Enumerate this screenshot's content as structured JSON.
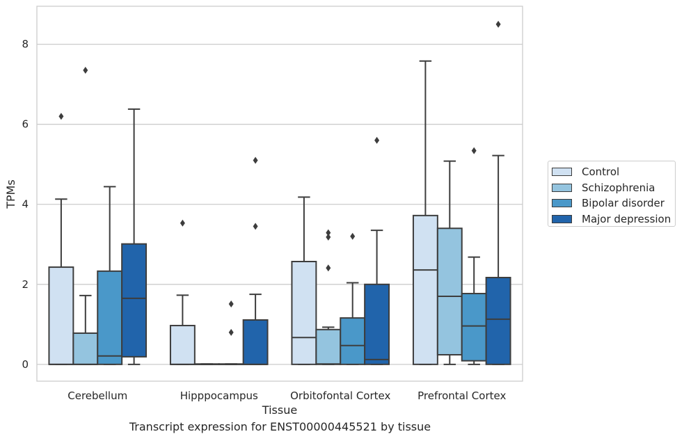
{
  "caption": "Transcript expression for ENST00000445521 by tissue",
  "chart_data": {
    "type": "box",
    "title": "",
    "xlabel": "Tissue",
    "ylabel": "TPMs",
    "ylim": [
      -0.42,
      8.95
    ],
    "yticks": [
      0,
      2,
      4,
      6,
      8
    ],
    "grid": "horizontal",
    "legend_position": "right",
    "categories": [
      "Cerebellum",
      "Hipppocampus",
      "Orbitofontal Cortex",
      "Prefrontal Cortex"
    ],
    "series": [
      {
        "name": "Control",
        "color": "#d0e1f2",
        "boxes": [
          {
            "low": 0,
            "q1": 0,
            "median": 0,
            "q3": 2.43,
            "high": 4.13,
            "outliers": [
              6.2
            ]
          },
          {
            "low": 0,
            "q1": 0,
            "median": 0,
            "q3": 0.97,
            "high": 1.73,
            "outliers": [
              3.53
            ]
          },
          {
            "low": 0,
            "q1": 0,
            "median": 0.67,
            "q3": 2.57,
            "high": 4.18,
            "outliers": []
          },
          {
            "low": 0,
            "q1": 0,
            "median": 2.36,
            "q3": 3.72,
            "high": 7.58,
            "outliers": []
          }
        ]
      },
      {
        "name": "Schizophrenia",
        "color": "#94c4df",
        "boxes": [
          {
            "low": 0,
            "q1": 0,
            "median": 0,
            "q3": 0.78,
            "high": 1.72,
            "outliers": [
              7.35
            ]
          },
          {
            "low": 0,
            "q1": 0,
            "median": 0,
            "q3": 0.01,
            "high": 0.01,
            "outliers": []
          },
          {
            "low": 0,
            "q1": 0,
            "median": 0.01,
            "q3": 0.87,
            "high": 0.93,
            "outliers": [
              2.41,
              3.18,
              3.29
            ]
          },
          {
            "low": 0,
            "q1": 0.24,
            "median": 1.7,
            "q3": 3.4,
            "high": 5.08,
            "outliers": []
          }
        ]
      },
      {
        "name": "Bipolar disorder",
        "color": "#4a98c9",
        "boxes": [
          {
            "low": 0,
            "q1": 0,
            "median": 0.21,
            "q3": 2.33,
            "high": 4.44,
            "outliers": []
          },
          {
            "low": 0,
            "q1": 0,
            "median": 0,
            "q3": 0.01,
            "high": 0.01,
            "outliers": [
              0.8,
              1.51
            ]
          },
          {
            "low": 0,
            "q1": 0,
            "median": 0.47,
            "q3": 1.16,
            "high": 2.04,
            "outliers": [
              3.2
            ]
          },
          {
            "low": 0,
            "q1": 0.09,
            "median": 0.96,
            "q3": 1.77,
            "high": 2.68,
            "outliers": [
              5.34
            ]
          }
        ]
      },
      {
        "name": "Major depression",
        "color": "#2164ab",
        "boxes": [
          {
            "low": 0,
            "q1": 0.19,
            "median": 1.65,
            "q3": 3.01,
            "high": 6.38,
            "outliers": []
          },
          {
            "low": 0,
            "q1": 0,
            "median": 0,
            "q3": 1.11,
            "high": 1.75,
            "outliers": [
              3.45,
              5.1
            ]
          },
          {
            "low": 0,
            "q1": 0,
            "median": 0.12,
            "q3": 2.0,
            "high": 3.35,
            "outliers": [
              5.6
            ]
          },
          {
            "low": 0,
            "q1": 0,
            "median": 1.13,
            "q3": 2.17,
            "high": 5.22,
            "outliers": [
              8.5
            ]
          }
        ]
      }
    ]
  }
}
